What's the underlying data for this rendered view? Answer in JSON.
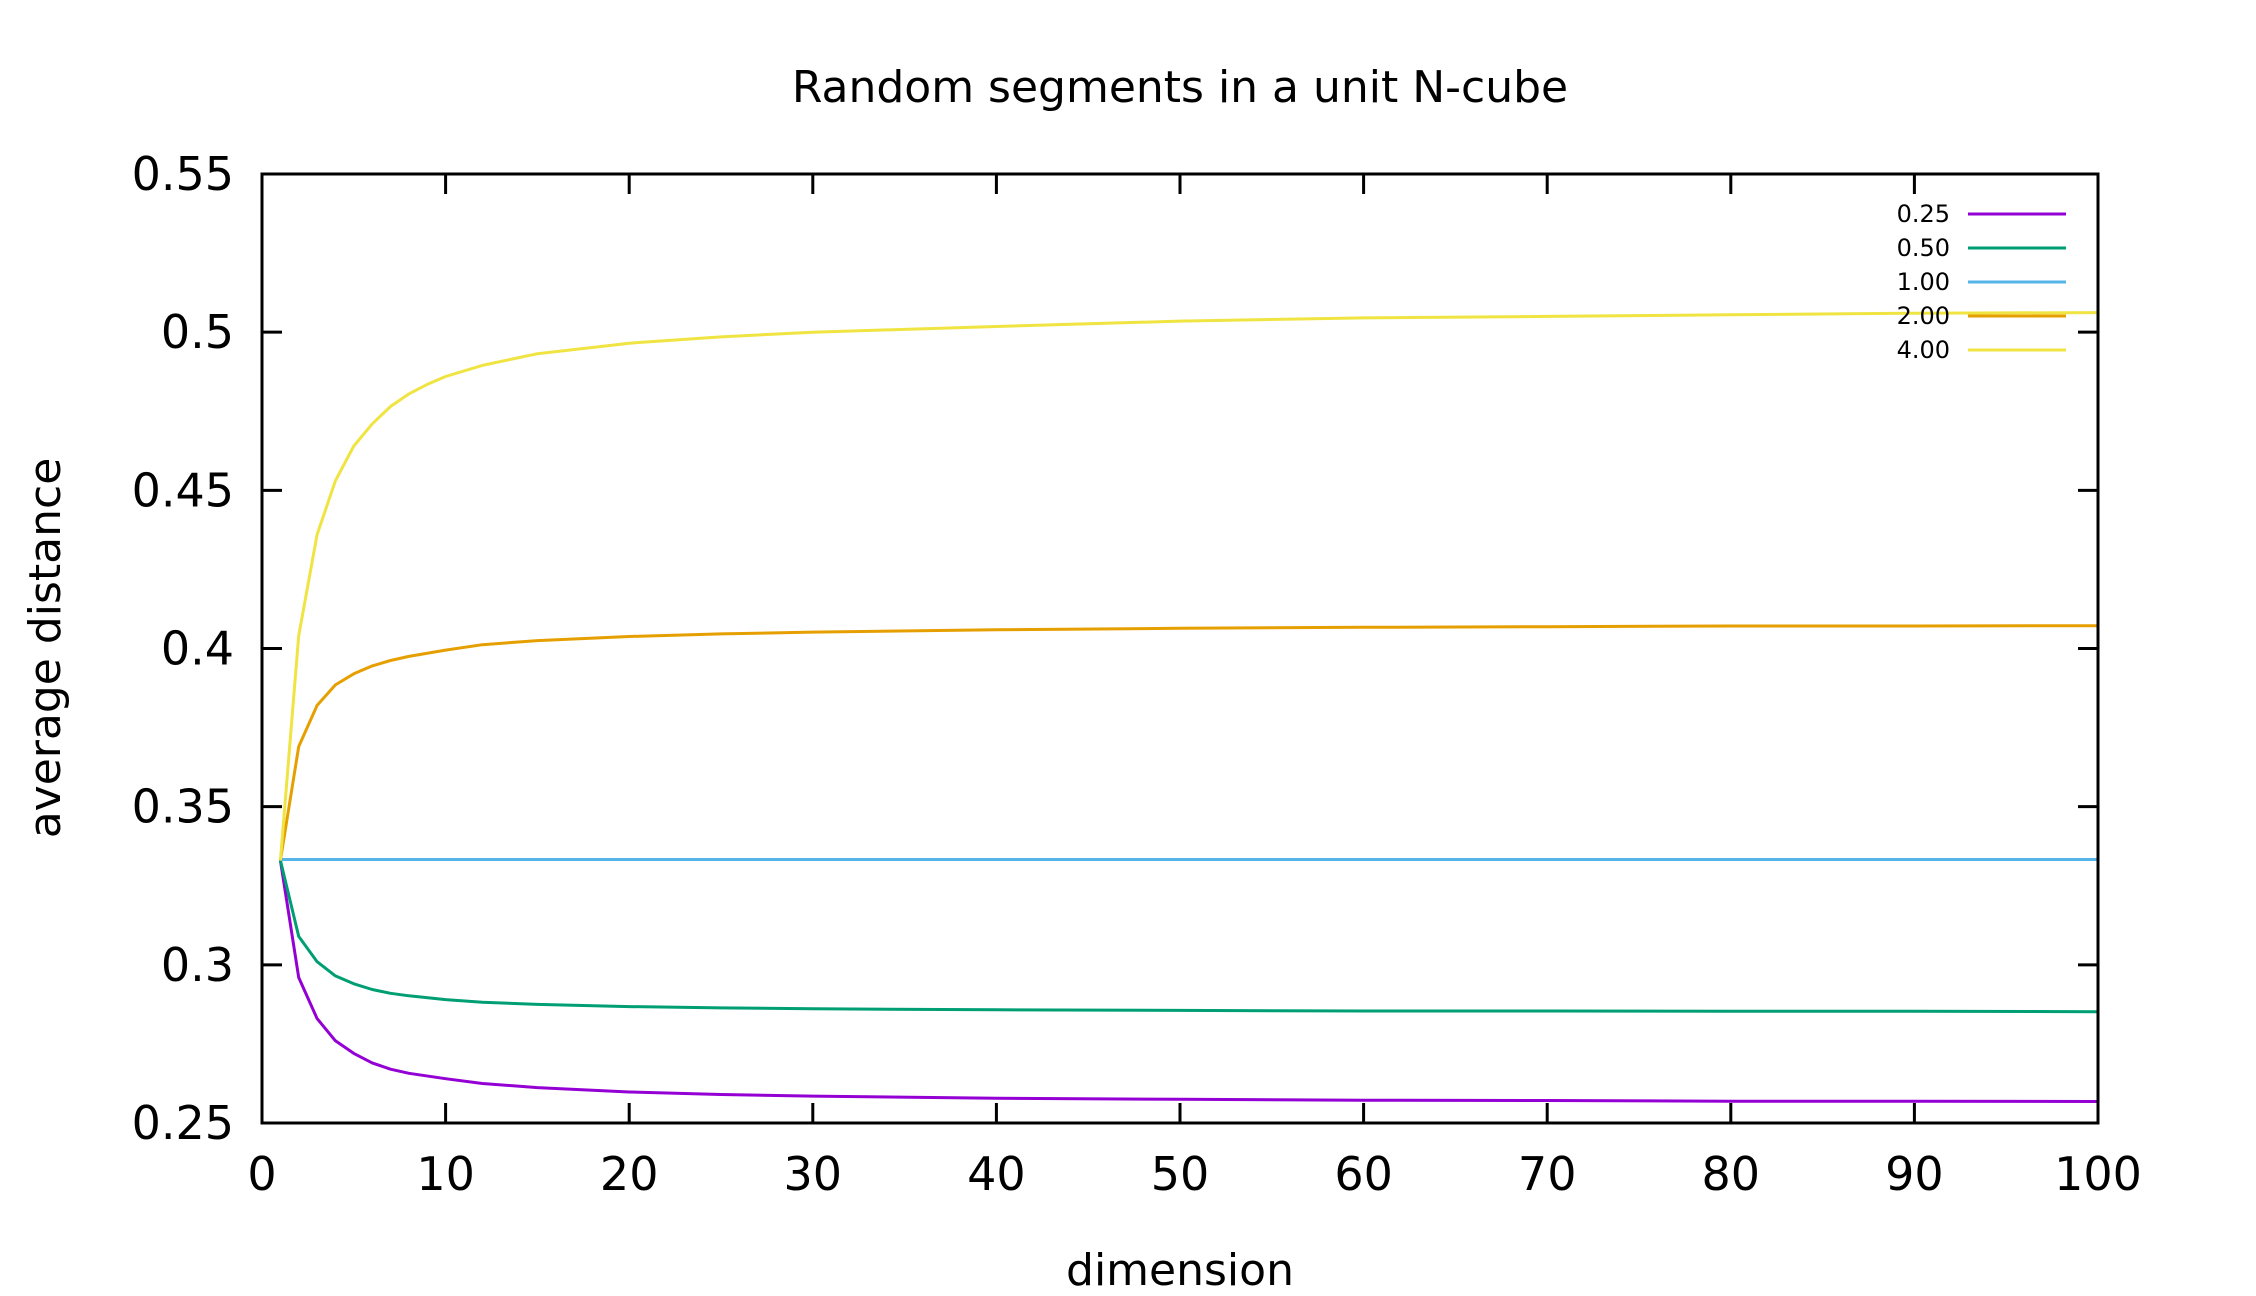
{
  "chart_data": {
    "type": "line",
    "title": "Random segments in a unit N-cube",
    "xlabel": "dimension",
    "ylabel": "average distance",
    "xlim": [
      0,
      100
    ],
    "ylim": [
      0.25,
      0.55
    ],
    "xticks": [
      "0",
      "10",
      "20",
      "30",
      "40",
      "50",
      "60",
      "70",
      "80",
      "90",
      "100"
    ],
    "yticks": [
      "0.25",
      "0.3",
      "0.35",
      "0.4",
      "0.45",
      "0.5",
      "0.55"
    ],
    "grid": false,
    "legend_position": "top-right",
    "series": [
      {
        "name": "0.25",
        "color": "#9400d3",
        "points": [
          [
            1,
            0.333
          ],
          [
            2,
            0.296
          ],
          [
            3,
            0.283
          ],
          [
            4,
            0.276
          ],
          [
            5,
            0.272
          ],
          [
            6,
            0.269
          ],
          [
            7,
            0.267
          ],
          [
            8,
            0.2657
          ],
          [
            10,
            0.264
          ],
          [
            12,
            0.2625
          ],
          [
            15,
            0.2612
          ],
          [
            20,
            0.2598
          ],
          [
            25,
            0.259
          ],
          [
            30,
            0.2585
          ],
          [
            40,
            0.2578
          ],
          [
            50,
            0.2575
          ],
          [
            60,
            0.2572
          ],
          [
            70,
            0.2571
          ],
          [
            80,
            0.2569
          ],
          [
            90,
            0.2569
          ],
          [
            100,
            0.2568
          ]
        ]
      },
      {
        "name": "0.50",
        "color": "#009e73",
        "points": [
          [
            1,
            0.333
          ],
          [
            2,
            0.309
          ],
          [
            3,
            0.301
          ],
          [
            4,
            0.2965
          ],
          [
            5,
            0.294
          ],
          [
            6,
            0.2922
          ],
          [
            7,
            0.291
          ],
          [
            8,
            0.2902
          ],
          [
            10,
            0.289
          ],
          [
            12,
            0.2882
          ],
          [
            15,
            0.2875
          ],
          [
            20,
            0.2868
          ],
          [
            25,
            0.2864
          ],
          [
            30,
            0.2861
          ],
          [
            40,
            0.2858
          ],
          [
            50,
            0.2856
          ],
          [
            60,
            0.2854
          ],
          [
            70,
            0.2854
          ],
          [
            80,
            0.2853
          ],
          [
            90,
            0.2853
          ],
          [
            100,
            0.2852
          ]
        ]
      },
      {
        "name": "1.00",
        "color": "#56b4e9",
        "points": [
          [
            1,
            0.3333
          ],
          [
            10,
            0.3333
          ],
          [
            20,
            0.3333
          ],
          [
            30,
            0.3333
          ],
          [
            40,
            0.3333
          ],
          [
            50,
            0.3333
          ],
          [
            60,
            0.3333
          ],
          [
            70,
            0.3333
          ],
          [
            80,
            0.3333
          ],
          [
            90,
            0.3333
          ],
          [
            100,
            0.3333
          ]
        ]
      },
      {
        "name": "2.00",
        "color": "#e69f00",
        "points": [
          [
            1,
            0.333
          ],
          [
            2,
            0.369
          ],
          [
            3,
            0.382
          ],
          [
            4,
            0.3885
          ],
          [
            5,
            0.392
          ],
          [
            6,
            0.3945
          ],
          [
            7,
            0.3962
          ],
          [
            8,
            0.3975
          ],
          [
            10,
            0.3995
          ],
          [
            12,
            0.4012
          ],
          [
            15,
            0.4025
          ],
          [
            20,
            0.4038
          ],
          [
            25,
            0.4046
          ],
          [
            30,
            0.4052
          ],
          [
            40,
            0.4059
          ],
          [
            50,
            0.4064
          ],
          [
            60,
            0.4067
          ],
          [
            70,
            0.4069
          ],
          [
            80,
            0.4071
          ],
          [
            90,
            0.4071
          ],
          [
            100,
            0.4072
          ]
        ]
      },
      {
        "name": "4.00",
        "color": "#f0e442",
        "points": [
          [
            1,
            0.333
          ],
          [
            2,
            0.404
          ],
          [
            3,
            0.436
          ],
          [
            4,
            0.453
          ],
          [
            5,
            0.464
          ],
          [
            6,
            0.471
          ],
          [
            7,
            0.4765
          ],
          [
            8,
            0.4805
          ],
          [
            9,
            0.4835
          ],
          [
            10,
            0.486
          ],
          [
            12,
            0.4895
          ],
          [
            15,
            0.4932
          ],
          [
            20,
            0.4965
          ],
          [
            25,
            0.4985
          ],
          [
            30,
            0.5
          ],
          [
            40,
            0.5018
          ],
          [
            50,
            0.5035
          ],
          [
            60,
            0.5045
          ],
          [
            70,
            0.505
          ],
          [
            80,
            0.5055
          ],
          [
            90,
            0.506
          ],
          [
            100,
            0.5062
          ]
        ]
      }
    ]
  }
}
